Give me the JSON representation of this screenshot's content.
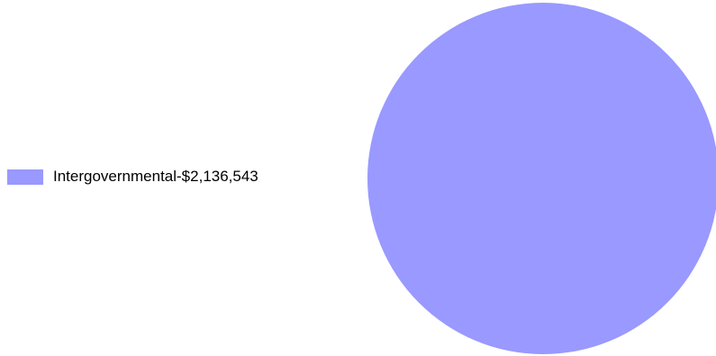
{
  "chart_data": {
    "type": "pie",
    "title": "",
    "slices": [
      {
        "label": "Intergovernmental-$2,136,543",
        "value": 2136543,
        "color": "#9999ff"
      }
    ],
    "legend_position": "left"
  }
}
